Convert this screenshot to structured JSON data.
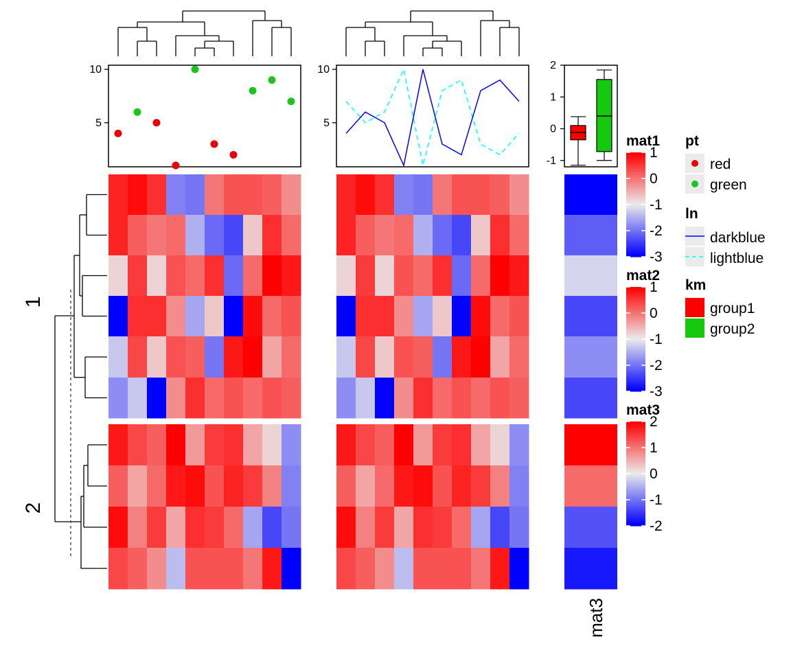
{
  "chart_data": {
    "type": "heatmap",
    "row_slices": [
      {
        "label": "1",
        "rows": [
          0,
          1,
          2,
          3,
          4,
          5
        ]
      },
      {
        "label": "2",
        "rows": [
          6,
          7,
          8,
          9
        ]
      }
    ],
    "mat1": [
      [
        0.7,
        0.9,
        0.6,
        -1.9,
        -2.0,
        0.0,
        0.3,
        0.3,
        0.2,
        -0.2
      ],
      [
        0.7,
        0.2,
        0.0,
        0.1,
        -1.5,
        -2.1,
        -2.4,
        -0.7,
        0.6,
        0.1
      ],
      [
        -0.8,
        0.5,
        -0.8,
        0.3,
        0.1,
        0.6,
        -2.1,
        0.1,
        1.0,
        0.8
      ],
      [
        -3.0,
        0.6,
        0.6,
        -0.2,
        -1.6,
        -0.7,
        -3.1,
        0.9,
        0.1,
        0.3
      ],
      [
        -1.3,
        0.4,
        -0.7,
        0.3,
        0.2,
        -2.0,
        0.8,
        1.0,
        -0.4,
        0.1
      ],
      [
        -1.8,
        -1.3,
        -3.5,
        -0.2,
        0.6,
        0.1,
        0.3,
        0.1,
        0.3,
        0.2
      ]
    ],
    "mat2": [
      [
        0.7,
        0.9,
        0.6,
        -1.9,
        -2.0,
        0.0,
        0.3,
        0.3,
        0.2,
        -0.2
      ],
      [
        0.7,
        0.2,
        0.0,
        0.1,
        -1.5,
        -2.1,
        -2.4,
        -0.7,
        0.6,
        0.1
      ],
      [
        -0.8,
        0.5,
        -0.8,
        0.3,
        0.1,
        0.6,
        -2.1,
        0.1,
        1.0,
        0.8
      ],
      [
        -3.0,
        0.6,
        0.6,
        -0.2,
        -1.6,
        -0.7,
        -3.1,
        0.9,
        0.1,
        0.3
      ],
      [
        -1.3,
        0.4,
        -0.7,
        0.3,
        0.2,
        -2.0,
        0.8,
        1.0,
        -0.4,
        0.1
      ],
      [
        -1.8,
        -1.3,
        -3.5,
        -0.2,
        0.6,
        0.1,
        0.3,
        0.1,
        0.3,
        0.2
      ]
    ],
    "mat1_slice2": [
      [
        0.8,
        0.4,
        0.2,
        1.1,
        -0.3,
        0.5,
        0.6,
        -0.4,
        -0.8,
        -1.8
      ],
      [
        0.2,
        -0.4,
        0.1,
        0.8,
        0.9,
        0.3,
        0.7,
        0.5,
        -0.1,
        -1.9
      ],
      [
        0.9,
        -0.1,
        0.5,
        -0.4,
        0.6,
        0.5,
        0.1,
        -1.6,
        -2.4,
        -2.0
      ],
      [
        0.4,
        0.2,
        -0.2,
        -1.4,
        0.3,
        0.3,
        0.3,
        0.0,
        0.8,
        -3.2
      ]
    ],
    "mat3": [
      -2.0,
      -1.2,
      -0.2,
      -1.4,
      -0.8,
      -1.4,
      2.0,
      1.1,
      -1.3,
      -1.8
    ],
    "points": {
      "y": [
        4,
        6,
        5,
        1,
        10,
        3,
        2,
        8,
        9,
        7
      ],
      "groups": [
        "red",
        "green",
        "red",
        "red",
        "green",
        "red",
        "red",
        "green",
        "green",
        "green"
      ],
      "colors": {
        "red": "#e8000b",
        "green": "#1ec41e"
      },
      "ylim": [
        1,
        10
      ],
      "ticks": [
        "5",
        "10"
      ]
    },
    "lines": {
      "darkblue": [
        4,
        6,
        5,
        1,
        10,
        3,
        2,
        8,
        9,
        7
      ],
      "lightblue": [
        7,
        5,
        6,
        10,
        1,
        8,
        9,
        3,
        2,
        4
      ],
      "ylim": [
        1,
        10
      ],
      "ticks": [
        "5",
        "10"
      ]
    },
    "boxplot": {
      "ylim": [
        -1.2,
        2.0
      ],
      "ticks": [
        "-1",
        "0",
        "1",
        "2"
      ],
      "groups": [
        {
          "name": "group1",
          "color": "#ff0000",
          "min": -1.15,
          "q1": -0.35,
          "median": -0.12,
          "q3": 0.1,
          "max": 0.38
        },
        {
          "name": "group2",
          "color": "#16c80e",
          "min": -1.0,
          "q1": -0.72,
          "median": 0.4,
          "q3": 1.55,
          "max": 1.85
        }
      ]
    },
    "column_label": "mat3",
    "legends": {
      "mat1": {
        "title": "mat1",
        "ticks": [
          "1",
          "0",
          "-1",
          "-2",
          "-3"
        ],
        "range": [
          -3,
          1
        ]
      },
      "mat2": {
        "title": "mat2",
        "ticks": [
          "1",
          "0",
          "-1",
          "-2",
          "-3"
        ],
        "range": [
          -3,
          1
        ]
      },
      "mat3": {
        "title": "mat3",
        "ticks": [
          "2",
          "1",
          "0",
          "-1",
          "-2"
        ],
        "range": [
          -2,
          2
        ]
      },
      "pt": {
        "title": "pt",
        "items": [
          "red",
          "green"
        ]
      },
      "ln": {
        "title": "ln",
        "items": [
          "darkblue",
          "lightblue"
        ]
      },
      "km": {
        "title": "km",
        "items": [
          "group1",
          "group2"
        ]
      }
    },
    "colors": {
      "high": "#ff0000",
      "mid": "#ebebeb",
      "low": "#0000ff",
      "lightblue": "#00ffff",
      "darkblue": "#0000ff"
    }
  }
}
